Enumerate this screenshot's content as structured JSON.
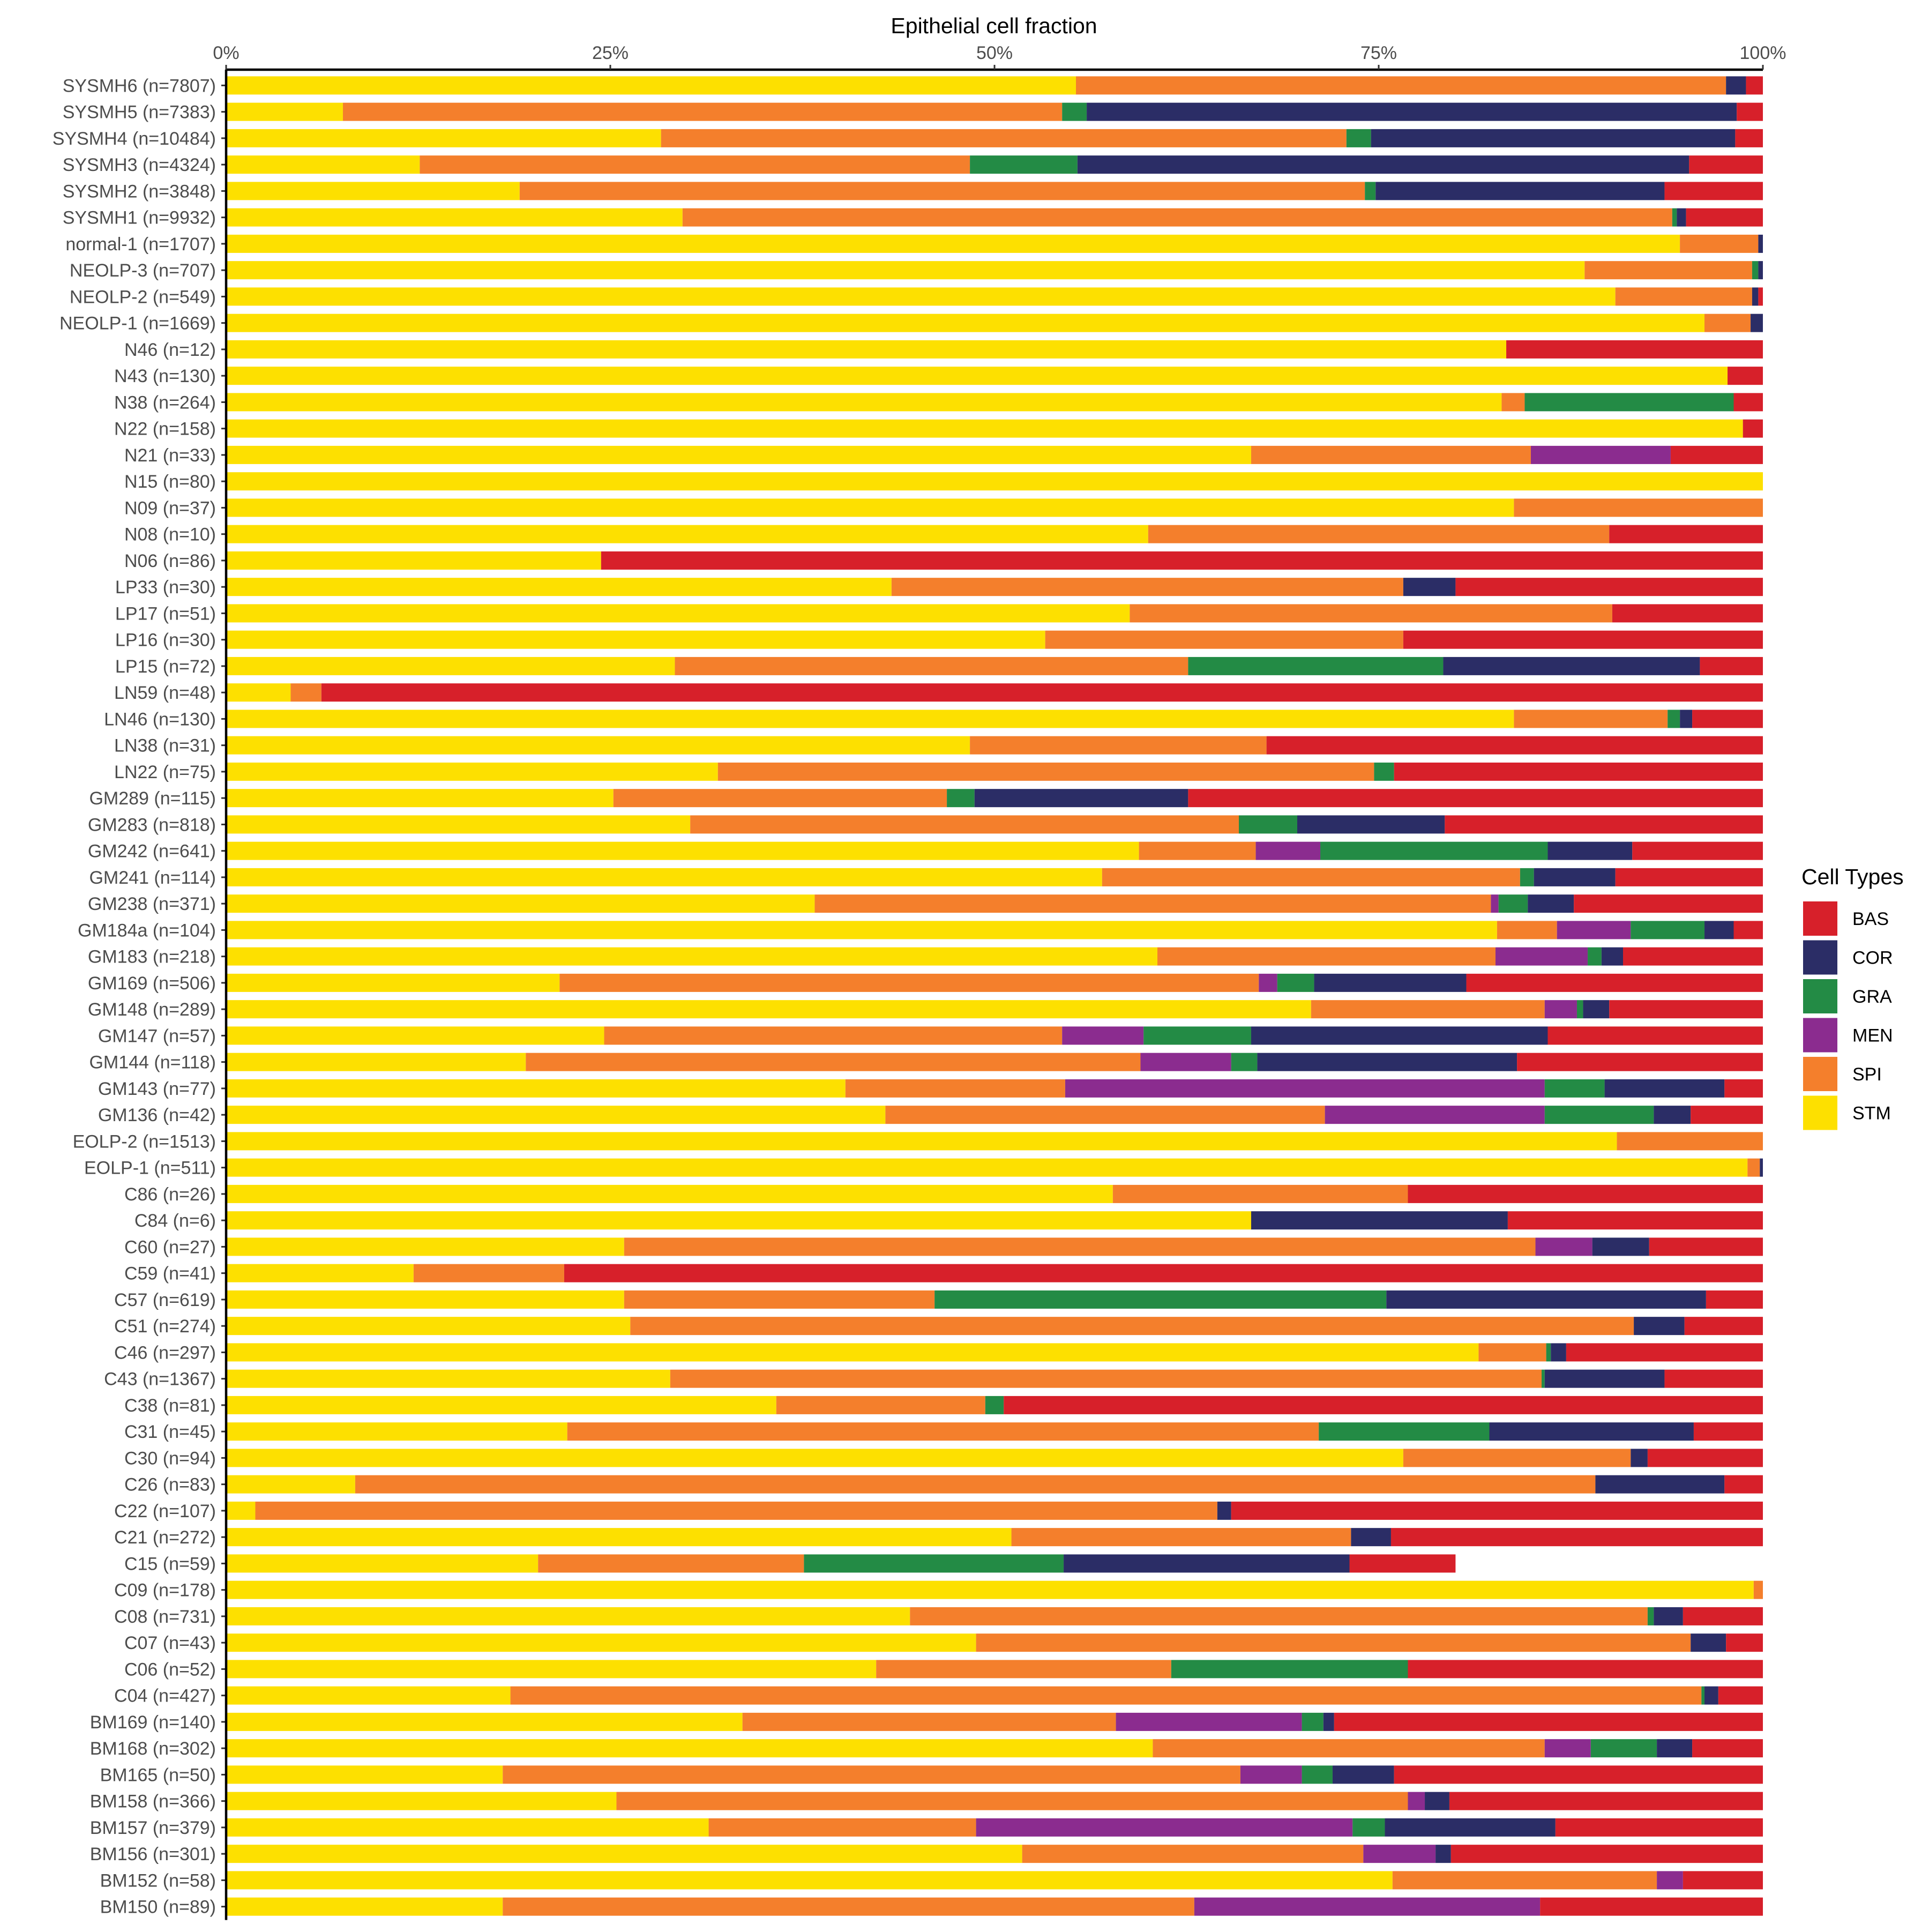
{
  "colors": {
    "BAS": "#D7202A",
    "COR": "#2B2D66",
    "GRA": "#238B45",
    "MEN": "#8B2C8F",
    "SPI": "#F47F2C",
    "STM": "#FDE000"
  },
  "chart_data": {
    "type": "bar",
    "orientation": "horizontal",
    "stacked": true,
    "title": "Epithelial cell fraction",
    "xlim": [
      0,
      100
    ],
    "x_ticks": [
      "0%",
      "25%",
      "50%",
      "75%",
      "100%"
    ],
    "legend": {
      "title": "Cell Types",
      "position": "right",
      "items": [
        "BAS",
        "COR",
        "GRA",
        "MEN",
        "SPI",
        "STM"
      ]
    },
    "stack_order": [
      "STM",
      "SPI",
      "MEN",
      "GRA",
      "COR",
      "BAS"
    ],
    "categories": [
      "SYSMH6 (n=7807)",
      "SYSMH5 (n=7383)",
      "SYSMH4 (n=10484)",
      "SYSMH3 (n=4324)",
      "SYSMH2 (n=3848)",
      "SYSMH1 (n=9932)",
      "normal-1 (n=1707)",
      "NEOLP-3 (n=707)",
      "NEOLP-2 (n=549)",
      "NEOLP-1 (n=1669)",
      "N46 (n=12)",
      "N43 (n=130)",
      "N38 (n=264)",
      "N22 (n=158)",
      "N21 (n=33)",
      "N15 (n=80)",
      "N09 (n=37)",
      "N08 (n=10)",
      "N06 (n=86)",
      "LP33 (n=30)",
      "LP17 (n=51)",
      "LP16 (n=30)",
      "LP15 (n=72)",
      "LN59 (n=48)",
      "LN46 (n=130)",
      "LN38 (n=31)",
      "LN22 (n=75)",
      "GM289 (n=115)",
      "GM283 (n=818)",
      "GM242 (n=641)",
      "GM241 (n=114)",
      "GM238 (n=371)",
      "GM184a (n=104)",
      "GM183 (n=218)",
      "GM169 (n=506)",
      "GM148 (n=289)",
      "GM147 (n=57)",
      "GM144 (n=118)",
      "GM143 (n=77)",
      "GM136 (n=42)",
      "EOLP-2 (n=1513)",
      "EOLP-1 (n=511)",
      "C86 (n=26)",
      "C84 (n=6)",
      "C60 (n=27)",
      "C59 (n=41)",
      "C57 (n=619)",
      "C51 (n=274)",
      "C46 (n=297)",
      "C43 (n=1367)",
      "C38 (n=81)",
      "C31 (n=45)",
      "C30 (n=94)",
      "C26 (n=83)",
      "C22 (n=107)",
      "C21 (n=272)",
      "C15 (n=59)",
      "C09 (n=178)",
      "C08 (n=731)",
      "C07 (n=43)",
      "C06 (n=52)",
      "C04 (n=427)",
      "BM169 (n=140)",
      "BM168 (n=302)",
      "BM165 (n=50)",
      "BM158 (n=366)",
      "BM157 (n=379)",
      "BM156 (n=301)",
      "BM152 (n=58)",
      "BM150 (n=89)"
    ],
    "series": [
      {
        "name": "STM",
        "values": [
          55.3,
          7.6,
          28.3,
          12.6,
          19.1,
          29.7,
          94.6,
          88.4,
          90.4,
          96.2,
          83.3,
          97.7,
          83.0,
          98.7,
          66.7,
          100.0,
          83.8,
          60.0,
          24.4,
          43.3,
          58.8,
          53.3,
          29.2,
          4.2,
          83.8,
          48.4,
          32.0,
          25.2,
          30.2,
          59.4,
          57.0,
          38.3,
          82.7,
          60.6,
          21.7,
          70.6,
          24.6,
          19.5,
          40.3,
          42.9,
          90.5,
          99.0,
          57.7,
          66.7,
          25.9,
          12.2,
          25.9,
          26.3,
          81.5,
          28.9,
          35.8,
          22.2,
          76.6,
          8.4,
          1.9,
          51.1,
          20.3,
          99.4,
          44.5,
          48.8,
          42.3,
          18.5,
          33.6,
          60.3,
          18.0,
          25.4,
          31.4,
          51.8,
          75.9,
          18.0
        ]
      },
      {
        "name": "SPI",
        "values": [
          42.3,
          46.8,
          44.6,
          35.8,
          55.0,
          64.4,
          5.1,
          10.9,
          8.9,
          3.0,
          0.0,
          0.0,
          1.5,
          0.0,
          18.2,
          0.0,
          16.2,
          30.0,
          0.0,
          33.3,
          31.4,
          23.3,
          33.4,
          2.0,
          10.0,
          19.3,
          42.7,
          21.7,
          35.7,
          7.6,
          27.2,
          44.0,
          3.9,
          22.0,
          45.5,
          15.2,
          29.8,
          40.0,
          14.3,
          28.6,
          9.5,
          0.8,
          19.2,
          0.0,
          59.3,
          9.8,
          20.2,
          65.3,
          4.4,
          56.7,
          13.6,
          48.9,
          14.8,
          80.7,
          62.6,
          22.1,
          17.3,
          0.6,
          48.0,
          46.5,
          19.2,
          77.5,
          24.3,
          25.5,
          48.0,
          51.5,
          17.4,
          22.2,
          17.2,
          45.0
        ]
      },
      {
        "name": "MEN",
        "values": [
          0.0,
          0.0,
          0.0,
          0.0,
          0.0,
          0.0,
          0.0,
          0.0,
          0.0,
          0.0,
          0.0,
          0.0,
          0.0,
          0.0,
          9.1,
          0.0,
          0.0,
          0.0,
          0.0,
          0.0,
          0.0,
          0.0,
          0.0,
          0.0,
          0.0,
          0.0,
          0.0,
          0.0,
          0.0,
          4.2,
          0.0,
          0.5,
          4.8,
          6.0,
          1.2,
          2.1,
          5.3,
          5.9,
          31.2,
          14.3,
          0.0,
          0.0,
          0.0,
          0.0,
          3.7,
          0.0,
          0.0,
          0.0,
          0.0,
          0.0,
          0.0,
          0.0,
          0.0,
          0.0,
          0.0,
          0.0,
          0.0,
          0.0,
          0.0,
          0.0,
          0.0,
          0.0,
          12.1,
          3.0,
          4.0,
          1.1,
          24.5,
          4.7,
          1.7,
          22.5
        ]
      },
      {
        "name": "GRA",
        "values": [
          0.0,
          1.6,
          1.6,
          7.0,
          0.7,
          0.3,
          0.0,
          0.4,
          0.0,
          0.0,
          0.0,
          0.0,
          13.6,
          0.0,
          0.0,
          0.0,
          0.0,
          0.0,
          0.0,
          0.0,
          0.0,
          0.0,
          16.6,
          0.0,
          0.8,
          0.0,
          1.3,
          1.8,
          3.8,
          14.8,
          0.9,
          1.9,
          4.8,
          0.9,
          2.4,
          0.4,
          7.0,
          1.7,
          3.9,
          7.1,
          0.0,
          0.0,
          0.0,
          0.0,
          0.0,
          0.0,
          29.4,
          0.0,
          0.3,
          0.2,
          1.2,
          11.1,
          0.0,
          0.0,
          0.0,
          0.0,
          16.9,
          0.0,
          0.4,
          0.0,
          15.4,
          0.2,
          1.4,
          4.3,
          2.0,
          0.0,
          2.1,
          0.0,
          0.0,
          0.0
        ]
      },
      {
        "name": "COR",
        "values": [
          1.3,
          42.3,
          23.7,
          39.8,
          18.8,
          0.6,
          0.3,
          0.3,
          0.4,
          0.8,
          0.0,
          0.0,
          0.0,
          0.0,
          0.0,
          0.0,
          0.0,
          0.0,
          0.0,
          3.4,
          0.0,
          0.0,
          16.7,
          0.0,
          0.8,
          0.0,
          0.0,
          13.9,
          9.6,
          5.5,
          5.3,
          3.0,
          1.9,
          1.4,
          9.9,
          1.7,
          19.3,
          16.9,
          7.8,
          2.4,
          0.0,
          0.2,
          0.0,
          16.7,
          3.7,
          0.0,
          20.8,
          3.3,
          1.0,
          7.8,
          0.0,
          13.3,
          1.1,
          8.4,
          0.9,
          2.6,
          18.6,
          0.0,
          1.9,
          2.3,
          0.0,
          0.9,
          0.7,
          2.3,
          4.0,
          1.6,
          11.1,
          1.0,
          0.0,
          0.0
        ]
      },
      {
        "name": "BAS",
        "values": [
          1.1,
          1.7,
          1.8,
          4.8,
          6.4,
          5.0,
          0.0,
          0.0,
          0.3,
          0.0,
          16.7,
          2.3,
          1.9,
          1.3,
          6.0,
          0.0,
          0.0,
          10.0,
          75.6,
          20.0,
          9.8,
          23.4,
          4.1,
          93.8,
          4.6,
          32.3,
          24.0,
          37.4,
          20.7,
          8.5,
          9.6,
          12.3,
          1.9,
          9.1,
          19.3,
          10.0,
          14.0,
          16.0,
          2.5,
          4.7,
          0.0,
          0.0,
          23.1,
          16.6,
          7.4,
          78.0,
          3.7,
          5.1,
          12.8,
          6.6,
          49.4,
          4.5,
          7.5,
          2.5,
          34.6,
          24.2,
          6.9,
          0.0,
          5.2,
          2.4,
          23.1,
          2.9,
          27.9,
          4.6,
          24.0,
          20.4,
          13.5,
          20.3,
          5.2,
          14.5
        ]
      }
    ]
  }
}
